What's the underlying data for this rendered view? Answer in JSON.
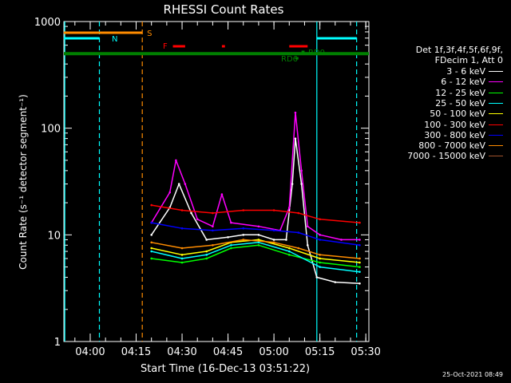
{
  "chart_data": {
    "type": "line",
    "title": "RHESSI Count Rates",
    "xlabel": "Start Time (16-Dec-13 03:51:22)",
    "ylabel": "Count Rate (s⁻¹ detector segment⁻¹)",
    "y_scale": "log",
    "ylim": [
      1,
      1000
    ],
    "xlim_minutes_after_04_00": [
      -8.6,
      91
    ],
    "x_ticks": [
      "04:00",
      "04:15",
      "04:30",
      "04:45",
      "05:00",
      "05:15",
      "05:30"
    ],
    "y_ticks": [
      "1",
      "10",
      "100",
      "1000"
    ],
    "legend_header": [
      "Det 1f,3f,4f,5f,6f,9f,",
      "FDecim 1, Att 0"
    ],
    "series": [
      {
        "name": "3 - 6 keV",
        "color": "#ffffff",
        "values": [
          {
            "t": "04:20",
            "v": 10
          },
          {
            "t": "04:26",
            "v": 18
          },
          {
            "t": "04:29",
            "v": 30
          },
          {
            "t": "04:33",
            "v": 16
          },
          {
            "t": "04:38",
            "v": 9
          },
          {
            "t": "04:45",
            "v": 9.5
          },
          {
            "t": "04:50",
            "v": 10
          },
          {
            "t": "04:55",
            "v": 10
          },
          {
            "t": "05:00",
            "v": 9
          },
          {
            "t": "05:04",
            "v": 9
          },
          {
            "t": "05:06",
            "v": 30
          },
          {
            "t": "05:07",
            "v": 80
          },
          {
            "t": "05:09",
            "v": 30
          },
          {
            "t": "05:11",
            "v": 8
          },
          {
            "t": "05:14",
            "v": 4
          },
          {
            "t": "05:20",
            "v": 3.6
          },
          {
            "t": "05:28",
            "v": 3.5
          }
        ]
      },
      {
        "name": "6 - 12 keV",
        "color": "#ff00ff",
        "values": [
          {
            "t": "04:20",
            "v": 13
          },
          {
            "t": "04:26",
            "v": 25
          },
          {
            "t": "04:28",
            "v": 50
          },
          {
            "t": "04:31",
            "v": 30
          },
          {
            "t": "04:35",
            "v": 14
          },
          {
            "t": "04:40",
            "v": 12
          },
          {
            "t": "04:43",
            "v": 24
          },
          {
            "t": "04:46",
            "v": 13
          },
          {
            "t": "04:55",
            "v": 12
          },
          {
            "t": "05:02",
            "v": 11
          },
          {
            "t": "05:05",
            "v": 18
          },
          {
            "t": "05:07",
            "v": 140
          },
          {
            "t": "05:09",
            "v": 40
          },
          {
            "t": "05:11",
            "v": 12
          },
          {
            "t": "05:15",
            "v": 10
          },
          {
            "t": "05:22",
            "v": 9
          },
          {
            "t": "05:28",
            "v": 9
          }
        ]
      },
      {
        "name": "12 - 25 keV",
        "color": "#00ff00",
        "values": [
          {
            "t": "04:20",
            "v": 6
          },
          {
            "t": "04:30",
            "v": 5.5
          },
          {
            "t": "04:38",
            "v": 6
          },
          {
            "t": "04:46",
            "v": 7.5
          },
          {
            "t": "04:55",
            "v": 8
          },
          {
            "t": "05:05",
            "v": 6.5
          },
          {
            "t": "05:15",
            "v": 5.5
          },
          {
            "t": "05:28",
            "v": 5
          }
        ]
      },
      {
        "name": "25 - 50 keV",
        "color": "#00ffff",
        "values": [
          {
            "t": "04:20",
            "v": 7
          },
          {
            "t": "04:30",
            "v": 6
          },
          {
            "t": "04:38",
            "v": 6.5
          },
          {
            "t": "04:46",
            "v": 8
          },
          {
            "t": "04:55",
            "v": 8.5
          },
          {
            "t": "05:05",
            "v": 7
          },
          {
            "t": "05:15",
            "v": 5
          },
          {
            "t": "05:28",
            "v": 4.5
          }
        ]
      },
      {
        "name": "50 - 100 keV",
        "color": "#ffff00",
        "values": [
          {
            "t": "04:20",
            "v": 7.5
          },
          {
            "t": "04:30",
            "v": 6.5
          },
          {
            "t": "04:38",
            "v": 7
          },
          {
            "t": "04:46",
            "v": 8.5
          },
          {
            "t": "04:55",
            "v": 9
          },
          {
            "t": "05:05",
            "v": 7.5
          },
          {
            "t": "05:15",
            "v": 6
          },
          {
            "t": "05:28",
            "v": 5.5
          }
        ]
      },
      {
        "name": "100 - 300 keV",
        "color": "#ff0000",
        "values": [
          {
            "t": "04:20",
            "v": 19
          },
          {
            "t": "04:30",
            "v": 17
          },
          {
            "t": "04:40",
            "v": 16
          },
          {
            "t": "04:50",
            "v": 17
          },
          {
            "t": "05:00",
            "v": 17
          },
          {
            "t": "05:08",
            "v": 16
          },
          {
            "t": "05:15",
            "v": 14
          },
          {
            "t": "05:28",
            "v": 13
          }
        ]
      },
      {
        "name": "300 - 800 keV",
        "color": "#0000ff",
        "values": [
          {
            "t": "04:20",
            "v": 13
          },
          {
            "t": "04:30",
            "v": 11.5
          },
          {
            "t": "04:40",
            "v": 11
          },
          {
            "t": "04:50",
            "v": 11.5
          },
          {
            "t": "05:00",
            "v": 11
          },
          {
            "t": "05:08",
            "v": 10.5
          },
          {
            "t": "05:15",
            "v": 9
          },
          {
            "t": "05:28",
            "v": 8
          }
        ]
      },
      {
        "name": "800 - 7000 keV",
        "color": "#ff8c00",
        "values": [
          {
            "t": "04:20",
            "v": 8.5
          },
          {
            "t": "04:30",
            "v": 7.5
          },
          {
            "t": "04:40",
            "v": 8
          },
          {
            "t": "04:50",
            "v": 9
          },
          {
            "t": "05:00",
            "v": 8.5
          },
          {
            "t": "05:08",
            "v": 7.5
          },
          {
            "t": "05:15",
            "v": 6.5
          },
          {
            "t": "05:28",
            "v": 6
          }
        ]
      },
      {
        "name": "7000 - 15000 keV",
        "color": "#a0522d",
        "values": []
      }
    ],
    "markers": {
      "S": {
        "color": "#ff8c00",
        "from": "03:51:22",
        "to": "04:17"
      },
      "N": {
        "color": "#00ffff",
        "segments": [
          [
            "03:51:22",
            "04:03"
          ],
          [
            "05:14",
            "05:27"
          ]
        ]
      },
      "F": {
        "color": "#ff0000",
        "segments": [
          [
            "04:27",
            "04:31"
          ],
          [
            "04:43",
            "04:44"
          ],
          [
            "05:05",
            "05:11"
          ]
        ]
      },
      "RD6": {
        "color": "#008000",
        "segments": [
          [
            "05:07",
            "05:08"
          ]
        ]
      },
      "RD0": {
        "color": "#008000",
        "segments": [
          [
            "05:09",
            "05:10"
          ]
        ]
      },
      "baseline_color": "#008000"
    }
  },
  "footer": {
    "timestamp": "25-Oct-2021 08:49"
  }
}
